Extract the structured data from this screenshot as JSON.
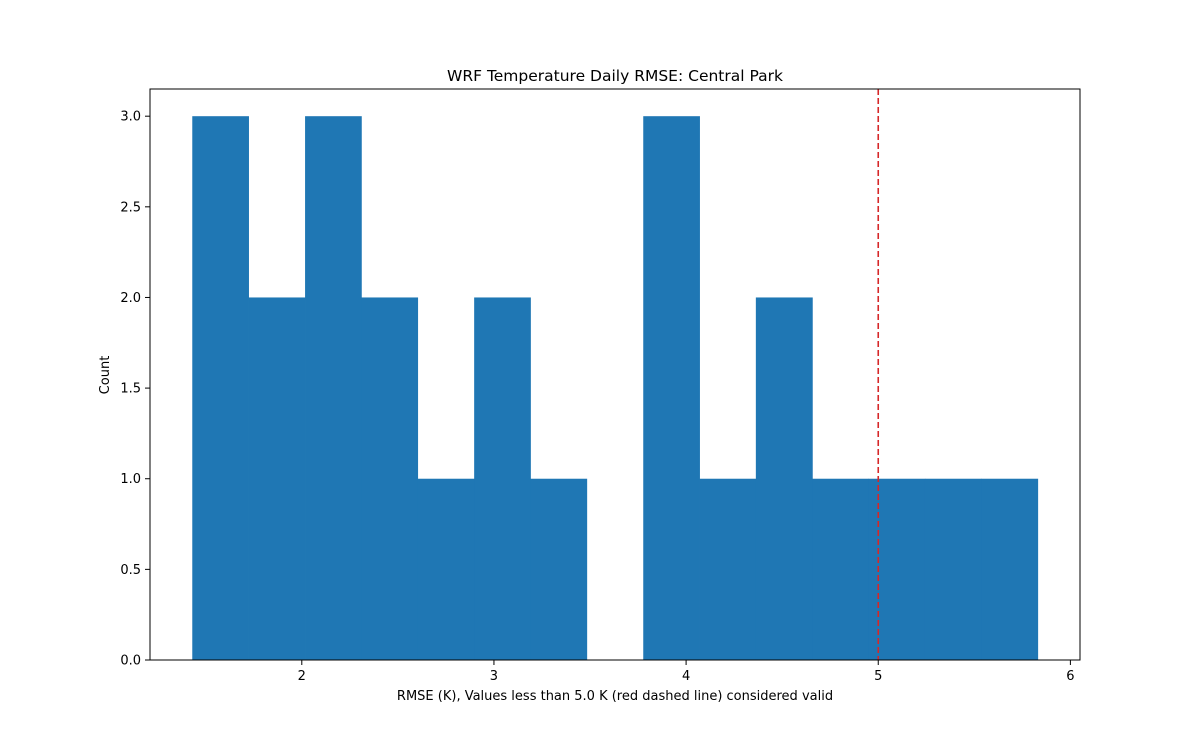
{
  "chart_data": {
    "type": "bar",
    "title": "WRF Temperature Daily RMSE: Central Park",
    "xlabel": "RMSE (K), Values less than 5.0 K (red dashed line) considered valid",
    "ylabel": "Count",
    "bin_edges": [
      1.43,
      1.723,
      2.017,
      2.31,
      2.603,
      2.897,
      3.19,
      3.483,
      3.777,
      4.07,
      4.363,
      4.657,
      4.95,
      5.243,
      5.537,
      5.83
    ],
    "values": [
      3,
      2,
      3,
      2,
      1,
      2,
      1,
      0,
      3,
      1,
      2,
      1,
      1,
      1,
      1
    ],
    "xlim": [
      1.21,
      6.05
    ],
    "ylim": [
      0,
      3.15
    ],
    "xticks": [
      2,
      3,
      4,
      5,
      6
    ],
    "xtick_labels": [
      "2",
      "3",
      "4",
      "5",
      "6"
    ],
    "yticks": [
      0,
      0.5,
      1,
      1.5,
      2,
      2.5,
      3
    ],
    "ytick_labels": [
      "0.0",
      "0.5",
      "1.0",
      "1.5",
      "2.0",
      "2.5",
      "3.0"
    ],
    "threshold": 5.0,
    "colors": {
      "bars": "#1f77b4",
      "threshold_line": "#d62728"
    },
    "grid": false
  }
}
